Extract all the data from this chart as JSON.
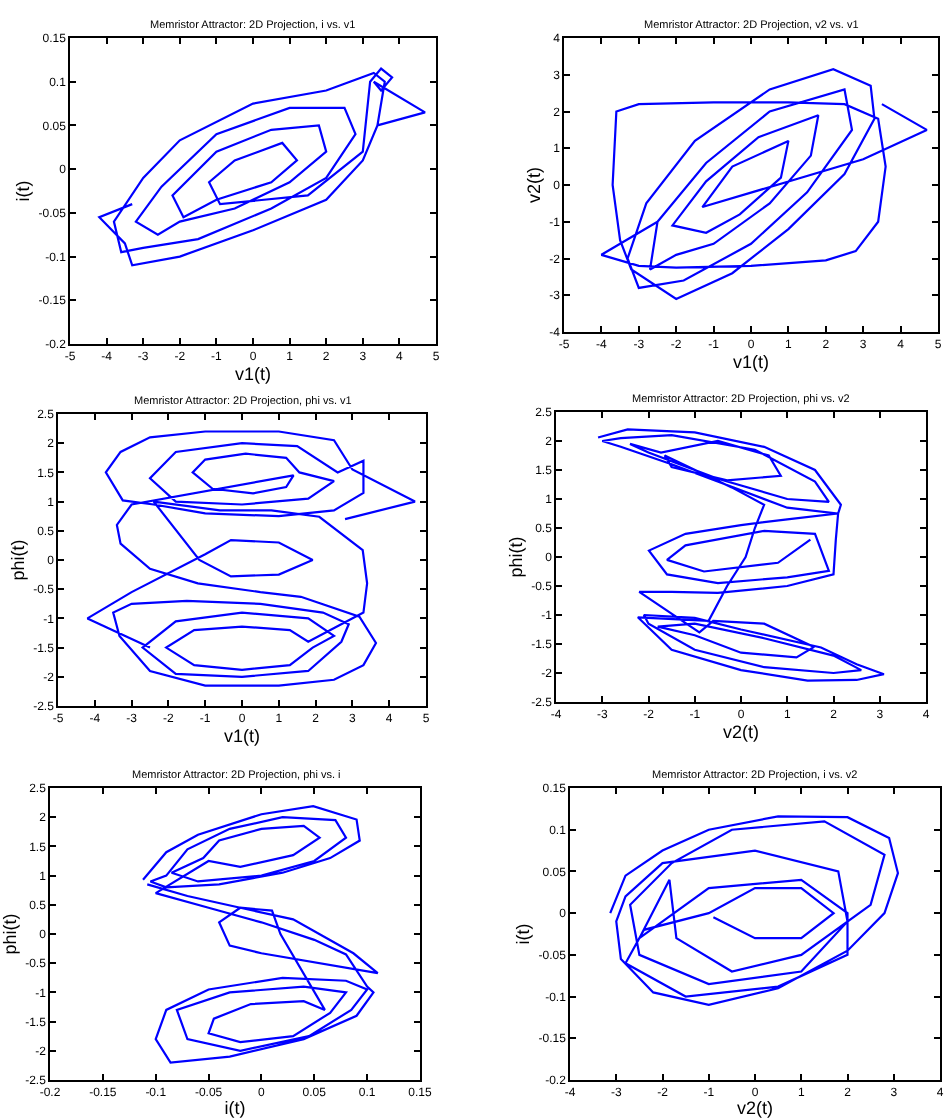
{
  "chart_data": [
    {
      "type": "line",
      "title": "Memristor Attractor: 2D Projection, i vs. v1",
      "xlabel": "v1(t)",
      "ylabel": "i(t)",
      "xlim": [
        -5,
        5
      ],
      "xticks": [
        -5,
        -4,
        -3,
        -2,
        -1,
        0,
        1,
        2,
        3,
        4,
        5
      ],
      "ylim": [
        -0.2,
        0.15
      ],
      "yticks": [
        -0.2,
        -0.15,
        -0.1,
        -0.05,
        0,
        0.05,
        0.1,
        0.15
      ],
      "series": [
        {
          "color": "#0000ff",
          "x": [
            -3.3,
            -4.2,
            -3.5,
            -3.3,
            -2,
            0,
            2,
            3,
            3.4,
            3.6,
            3.3,
            2,
            0,
            -2,
            -3,
            -3.8,
            -3.6,
            -3,
            -1.5,
            0.5,
            2,
            2.8,
            2.5,
            1,
            -1,
            -2.5,
            -3.2,
            -2.6,
            -2,
            -0.5,
            1,
            2,
            1.8,
            0.5,
            -1,
            -2.2,
            -1.9,
            -1,
            0.5,
            1.2,
            0.8,
            -0.5,
            -1.2,
            -0.9,
            1.5,
            3,
            3.2,
            3.5,
            3.8,
            3.5,
            3.3,
            4.7,
            3.4
          ],
          "values": [
            -0.04,
            -0.055,
            -0.085,
            -0.11,
            -0.1,
            -0.07,
            -0.035,
            0.01,
            0.05,
            0.1,
            0.11,
            0.09,
            0.075,
            0.033,
            -0.01,
            -0.06,
            -0.095,
            -0.09,
            -0.08,
            -0.045,
            -0.01,
            0.04,
            0.07,
            0.07,
            0.04,
            -0.02,
            -0.06,
            -0.075,
            -0.06,
            -0.045,
            -0.015,
            0.02,
            0.05,
            0.045,
            0.02,
            -0.03,
            -0.055,
            -0.035,
            -0.015,
            0.01,
            0.03,
            0.01,
            -0.015,
            -0.04,
            -0.03,
            0.02,
            0.1,
            0.115,
            0.105,
            0.09,
            0.1,
            0.065,
            0.05
          ]
        }
      ]
    },
    {
      "type": "line",
      "title": "Memristor Attractor: 2D Projection, v2 vs. v1",
      "xlabel": "v1(t)",
      "ylabel": "v2(t)",
      "xlim": [
        -5,
        5
      ],
      "xticks": [
        -5,
        -4,
        -3,
        -2,
        -1,
        0,
        1,
        2,
        3,
        4,
        5
      ],
      "ylim": [
        -4,
        4
      ],
      "yticks": [
        -4,
        -3,
        -2,
        -1,
        0,
        1,
        2,
        3,
        4
      ],
      "series": [
        {
          "color": "#0000ff",
          "x": [
            -2.5,
            -4,
            -3,
            -2,
            0,
            2,
            2.8,
            3.4,
            3.6,
            3.4,
            2.5,
            1,
            -1,
            -3,
            -3.6,
            -3.7,
            -3.5,
            -3.2,
            -2,
            -0.5,
            1,
            2.5,
            3.3,
            3.2,
            2.2,
            0.5,
            -1.5,
            -2.8,
            -3.3,
            -3,
            -1.8,
            0,
            1.5,
            2.7,
            2.5,
            0.5,
            -1.2,
            -2.5,
            -2.7,
            -2,
            -1,
            0.5,
            1.6,
            1.8,
            0.2,
            -1.2,
            -2.1,
            -1.2,
            -0.3,
            0.8,
            1,
            -0.5,
            -1.3,
            3,
            4.7,
            3.5
          ],
          "values": [
            -1,
            -1.9,
            -2.2,
            -2.25,
            -2.2,
            -2.05,
            -1.8,
            -1,
            0.5,
            1.8,
            2.2,
            2.25,
            2.25,
            2.2,
            2,
            0,
            -1.5,
            -2.3,
            -3.1,
            -2.4,
            -1.2,
            0.3,
            1.8,
            2.7,
            3.15,
            2.6,
            1.2,
            -0.5,
            -2,
            -2.8,
            -2.6,
            -1.6,
            -0.2,
            1.5,
            2.6,
            2,
            0.6,
            -1,
            -2.3,
            -1.9,
            -1.6,
            -0.5,
            0.8,
            1.9,
            1.3,
            0.1,
            -1.1,
            -1.3,
            -0.8,
            0.2,
            1.2,
            0.5,
            -0.6,
            0.7,
            1.5,
            2.2
          ]
        }
      ]
    },
    {
      "type": "line",
      "title": "Memristor Attractor: 2D Projection, phi vs. v1",
      "xlabel": "v1(t)",
      "ylabel": "phi(t)",
      "xlim": [
        -5,
        5
      ],
      "xticks": [
        -5,
        -4,
        -3,
        -2,
        -1,
        0,
        1,
        2,
        3,
        4,
        5
      ],
      "ylim": [
        -2.5,
        2.5
      ],
      "yticks": [
        -2.5,
        -2,
        -1.5,
        -1,
        -0.5,
        0,
        0.5,
        1,
        1.5,
        2,
        2.5
      ],
      "series": [
        {
          "color": "#0000ff",
          "x": [
            2.8,
            4.7,
            3,
            2.5,
            1,
            -1,
            -2.5,
            -3.3,
            -3.7,
            -3.24,
            -2.4,
            -1,
            1,
            2.5,
            3.3,
            3.3,
            2.6,
            1.5,
            0,
            -1.8,
            -2.5,
            -1.8,
            0,
            1.8,
            2.5,
            1.56,
            1.2,
            0.1,
            -1,
            -1.34,
            -0.8,
            0.3,
            1.2,
            1.4,
            -3,
            -3.4,
            -3.3,
            -2.5,
            -1.2,
            0.5,
            1.6,
            3.19,
            3.64,
            3.3,
            2.5,
            1,
            -1,
            -2.5,
            -3.33,
            -3.5,
            -3,
            -1.5,
            0.5,
            2.2,
            2.9,
            2.7,
            1.8,
            0,
            -1.8,
            -2.7,
            -1.8,
            0,
            1.8,
            2.5,
            1.92,
            1.3,
            0,
            -1.3,
            -2.06,
            -1.3,
            0,
            1.3,
            1.8,
            3.3,
            3.4,
            3.28,
            2.1,
            0.8,
            -0.6,
            -2.4,
            -1.16,
            -0.3,
            1,
            1.92,
            1,
            -0.3,
            -1,
            -3,
            -4.2,
            -2.5
          ],
          "values": [
            0.7,
            1,
            1.55,
            2.05,
            2.2,
            2.2,
            2.1,
            1.85,
            1.5,
            1.02,
            0.95,
            0.8,
            0.75,
            0.85,
            1.15,
            1.7,
            1.5,
            1.95,
            2,
            1.85,
            1.4,
            1,
            0.95,
            1.05,
            1.35,
            1.5,
            1.75,
            1.82,
            1.72,
            1.5,
            1.22,
            1.14,
            1.25,
            1.45,
            0.95,
            0.6,
            0.28,
            -0.15,
            -0.4,
            -0.55,
            -0.63,
            -0.97,
            -1.42,
            -1.8,
            -2.05,
            -2.15,
            -2.15,
            -1.9,
            -1.3,
            -0.9,
            -0.75,
            -0.7,
            -0.75,
            -0.9,
            -1.1,
            -1.4,
            -1.9,
            -2,
            -1.95,
            -1.5,
            -1.05,
            -0.9,
            -1,
            -1.3,
            -1.5,
            -1.8,
            -1.88,
            -1.8,
            -1.5,
            -1.2,
            -1.14,
            -1.2,
            -1.4,
            -0.9,
            -0.4,
            0.17,
            0.74,
            0.85,
            0.85,
            1,
            0,
            -0.28,
            -0.25,
            0,
            0.3,
            0.34,
            0.1,
            -0.55,
            -1,
            -1.5
          ]
        }
      ]
    },
    {
      "type": "line",
      "title": "Memristor Attractor: 2D Projection, phi vs. v2",
      "xlabel": "v2(t)",
      "ylabel": "phi(t)",
      "xlim": [
        -4,
        4
      ],
      "xticks": [
        -4,
        -3,
        -2,
        -1,
        0,
        1,
        2,
        3,
        4
      ],
      "ylim": [
        -2.5,
        2.5
      ],
      "yticks": [
        -2.5,
        -2,
        -1.5,
        -1,
        -0.5,
        0,
        0.5,
        1,
        1.5,
        2,
        2.5
      ],
      "series": [
        {
          "color": "#0000ff",
          "x": [
            -3.09,
            -2.45,
            -1,
            0.5,
            1.6,
            2.16,
            2.1,
            1,
            0,
            -1.5,
            -2.6,
            -3,
            -2.6,
            -1.5,
            0.3,
            1.6,
            1.9,
            1,
            -0.5,
            -2,
            -2.4,
            -1.73,
            -0.5,
            0.6,
            0.86,
            -0.3,
            -1.5,
            -1.65,
            -0.2,
            0.5,
            0.3,
            0.1,
            -0.3,
            -0.7,
            -2.23,
            -1.5,
            0,
            1.44,
            2.5,
            3.09,
            2.5,
            1.73,
            0,
            -1,
            -2.1,
            -2,
            -1,
            0.5,
            2,
            2.6,
            2,
            0.5,
            -1,
            -1.8,
            -1,
            0,
            1.2,
            1.58,
            0.5,
            -0.6,
            -0.9,
            -2.2,
            -1.5,
            -0.5,
            1,
            2,
            2.05,
            2.1,
            1,
            0,
            -1.2,
            -1.99,
            -1.6,
            -0.5,
            1,
            1.9,
            1.6,
            0.5,
            -1.2,
            -1.6,
            -0.8,
            0.8,
            1.5
          ],
          "values": [
            2.06,
            2.2,
            2.15,
            1.9,
            1.5,
            0.9,
            0.75,
            0.85,
            1.15,
            1.6,
            1.9,
            2,
            2.05,
            2.1,
            1.85,
            1.3,
            0.95,
            1,
            1.35,
            1.8,
            1.95,
            1.8,
            2,
            1.75,
            1.4,
            1.32,
            1.55,
            1.75,
            1.2,
            0.9,
            0.5,
            0,
            -0.5,
            -1.1,
            -1.04,
            -1.6,
            -1.95,
            -2.13,
            -2.12,
            -2.02,
            -1.85,
            -1.56,
            -1.25,
            -1.05,
            -1,
            -1.15,
            -1.6,
            -1.9,
            -2,
            -1.95,
            -1.7,
            -1.4,
            -1.15,
            -1.2,
            -1.35,
            -1.65,
            -1.73,
            -1.55,
            -1.15,
            -1.1,
            -1.3,
            -0.6,
            -0.6,
            -0.62,
            -0.5,
            -0.3,
            0.3,
            0.75,
            0.65,
            0.55,
            0.4,
            0.11,
            -0.3,
            -0.45,
            -0.35,
            -0.24,
            0.4,
            0.45,
            0.2,
            -0.05,
            -0.25,
            -0.1,
            0.3
          ]
        }
      ]
    },
    {
      "type": "line",
      "title": "Memristor Attractor: 2D Projection, phi vs. i",
      "xlabel": "i(t)",
      "ylabel": "phi(t)",
      "xlim": [
        -0.2,
        0.15
      ],
      "xticks": [
        -0.2,
        -0.15,
        -0.1,
        -0.05,
        0,
        0.05,
        0.1,
        0.15
      ],
      "ylim": [
        -2.5,
        2.5
      ],
      "yticks": [
        -2.5,
        -2,
        -1.5,
        -1,
        -0.5,
        0,
        0.5,
        1,
        1.5,
        2,
        2.5
      ],
      "series": [
        {
          "color": "#0000ff",
          "x": [
            -0.112,
            -0.09,
            -0.06,
            0,
            0.049,
            0.09,
            0.093,
            0.065,
            0.02,
            -0.04,
            -0.09,
            -0.105,
            -0.09,
            -0.07,
            -0.03,
            0.02,
            0.07,
            0.08,
            0.05,
            0,
            -0.06,
            -0.085,
            -0.055,
            -0.04,
            0,
            0.04,
            0.055,
            0.03,
            -0.02,
            -0.05,
            -0.1,
            -0.05,
            0,
            0.05,
            0.08,
            0.1,
            0.106,
            0.09,
            0.04,
            -0.03,
            -0.086,
            -0.1,
            -0.09,
            -0.05,
            0.02,
            0.08,
            0.1,
            0.085,
            0.045,
            -0.02,
            -0.07,
            -0.08,
            -0.03,
            0.04,
            0.08,
            0.065,
            0.03,
            -0.02,
            -0.05,
            -0.045,
            -0.01,
            0.04,
            0.06,
            0.018,
            0.01,
            -0.02,
            -0.04,
            -0.03,
            0,
            0.11,
            0.087,
            0.03,
            -0.02,
            -0.07,
            -0.108
          ],
          "values": [
            0.93,
            1.4,
            1.7,
            2.05,
            2.19,
            1.96,
            1.6,
            1.3,
            1.05,
            0.85,
            0.8,
            0.9,
            1,
            1.45,
            1.8,
            2,
            1.95,
            1.65,
            1.25,
            1,
            0.9,
            1.05,
            1.3,
            1.6,
            1.8,
            1.85,
            1.65,
            1.35,
            1.15,
            1.25,
            0.7,
            0.45,
            0.2,
            -0.1,
            -0.35,
            -0.9,
            -1,
            -1.4,
            -1.8,
            -2.1,
            -2.2,
            -1.8,
            -1.3,
            -0.95,
            -0.75,
            -0.8,
            -0.95,
            -1.3,
            -1.75,
            -2,
            -1.8,
            -1.3,
            -1,
            -0.9,
            -1,
            -1.35,
            -1.75,
            -1.85,
            -1.7,
            -1.45,
            -1.2,
            -1.15,
            -1.3,
            0,
            0.4,
            0.45,
            0.2,
            -0.2,
            -0.33,
            -0.67,
            -0.33,
            0.25,
            0.45,
            0.65,
            0.85
          ]
        }
      ]
    },
    {
      "type": "line",
      "title": "Memristor Attractor: 2D Projection, i vs. v2",
      "xlabel": "v2(t)",
      "ylabel": "i(t)",
      "xlim": [
        -4,
        4
      ],
      "xticks": [
        -4,
        -3,
        -2,
        -1,
        0,
        1,
        2,
        3,
        4
      ],
      "ylim": [
        -0.2,
        0.15
      ],
      "yticks": [
        -0.2,
        -0.15,
        -0.1,
        -0.05,
        0,
        0.05,
        0.1,
        0.15
      ],
      "series": [
        {
          "color": "#0000ff",
          "x": [
            -3.13,
            -2.8,
            -2,
            -1,
            0.5,
            2,
            2.9,
            3.09,
            2.8,
            2,
            0.5,
            -1,
            -2.2,
            -2.9,
            -3,
            -2.8,
            -2,
            0,
            1.8,
            2,
            1,
            -1,
            -2.5,
            -2.7,
            -1.8,
            -0.5,
            1.5,
            2.8,
            2.5,
            1,
            -0.5,
            -1.7,
            -1.85,
            -2.5,
            -1,
            1,
            2,
            2,
            0.5,
            -1.5,
            -2.8,
            -2.4,
            -1,
            0,
            1,
            1.7,
            1,
            0,
            -0.9
          ],
          "values": [
            0,
            0.045,
            0.075,
            0.1,
            0.116,
            0.115,
            0.09,
            0.048,
            0,
            -0.045,
            -0.09,
            -0.11,
            -0.095,
            -0.055,
            -0.01,
            0.02,
            0.06,
            0.075,
            0.05,
            -0.01,
            -0.07,
            -0.085,
            -0.05,
            0.01,
            0.06,
            0.1,
            0.11,
            0.07,
            0.01,
            -0.05,
            -0.07,
            -0.03,
            0.04,
            -0.03,
            0.03,
            0.04,
            0,
            -0.05,
            -0.088,
            -0.1,
            -0.06,
            -0.02,
            0,
            0.03,
            0.03,
            0,
            -0.03,
            -0.03,
            -0.005
          ]
        }
      ]
    }
  ]
}
